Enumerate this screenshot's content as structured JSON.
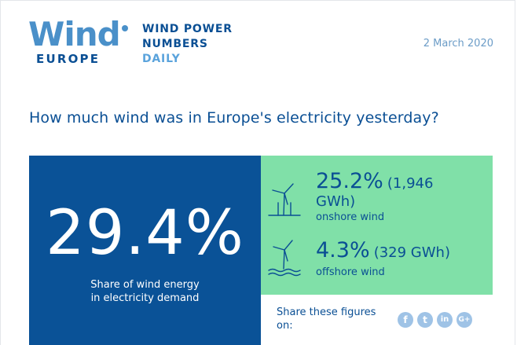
{
  "brand": {
    "logo_word": "Wind",
    "logo_sub": "EUROPE",
    "tagline": [
      "WIND POWER",
      "NUMBERS",
      "DAILY"
    ]
  },
  "date": "2 March 2020",
  "question": "How much wind was in Europe's electricity yesterday?",
  "total": {
    "value": "29.4%",
    "caption_line1": "Share of wind energy",
    "caption_line2": "in electricity demand"
  },
  "onshore": {
    "value": "25.2%",
    "detail_a": "(1,946",
    "detail_b": "GWh)",
    "label": "onshore wind",
    "icon": "onshore-turbine-icon"
  },
  "offshore": {
    "value": "4.3%",
    "detail": "(329 GWh)",
    "label": "offshore wind",
    "icon": "offshore-turbine-icon"
  },
  "share": {
    "label_line1": "Share these figures",
    "label_line2": "on:",
    "networks": [
      {
        "name": "facebook",
        "glyph": "f"
      },
      {
        "name": "twitter",
        "glyph": "t"
      },
      {
        "name": "linkedin",
        "glyph": "in"
      },
      {
        "name": "google-plus",
        "glyph": "G+"
      }
    ]
  },
  "colors": {
    "brand_dark": "#0a4f94",
    "brand_light": "#4a90c9",
    "panel_blue": "#0a5297",
    "panel_green": "#80e0a8",
    "social": "#9fc3e6"
  }
}
